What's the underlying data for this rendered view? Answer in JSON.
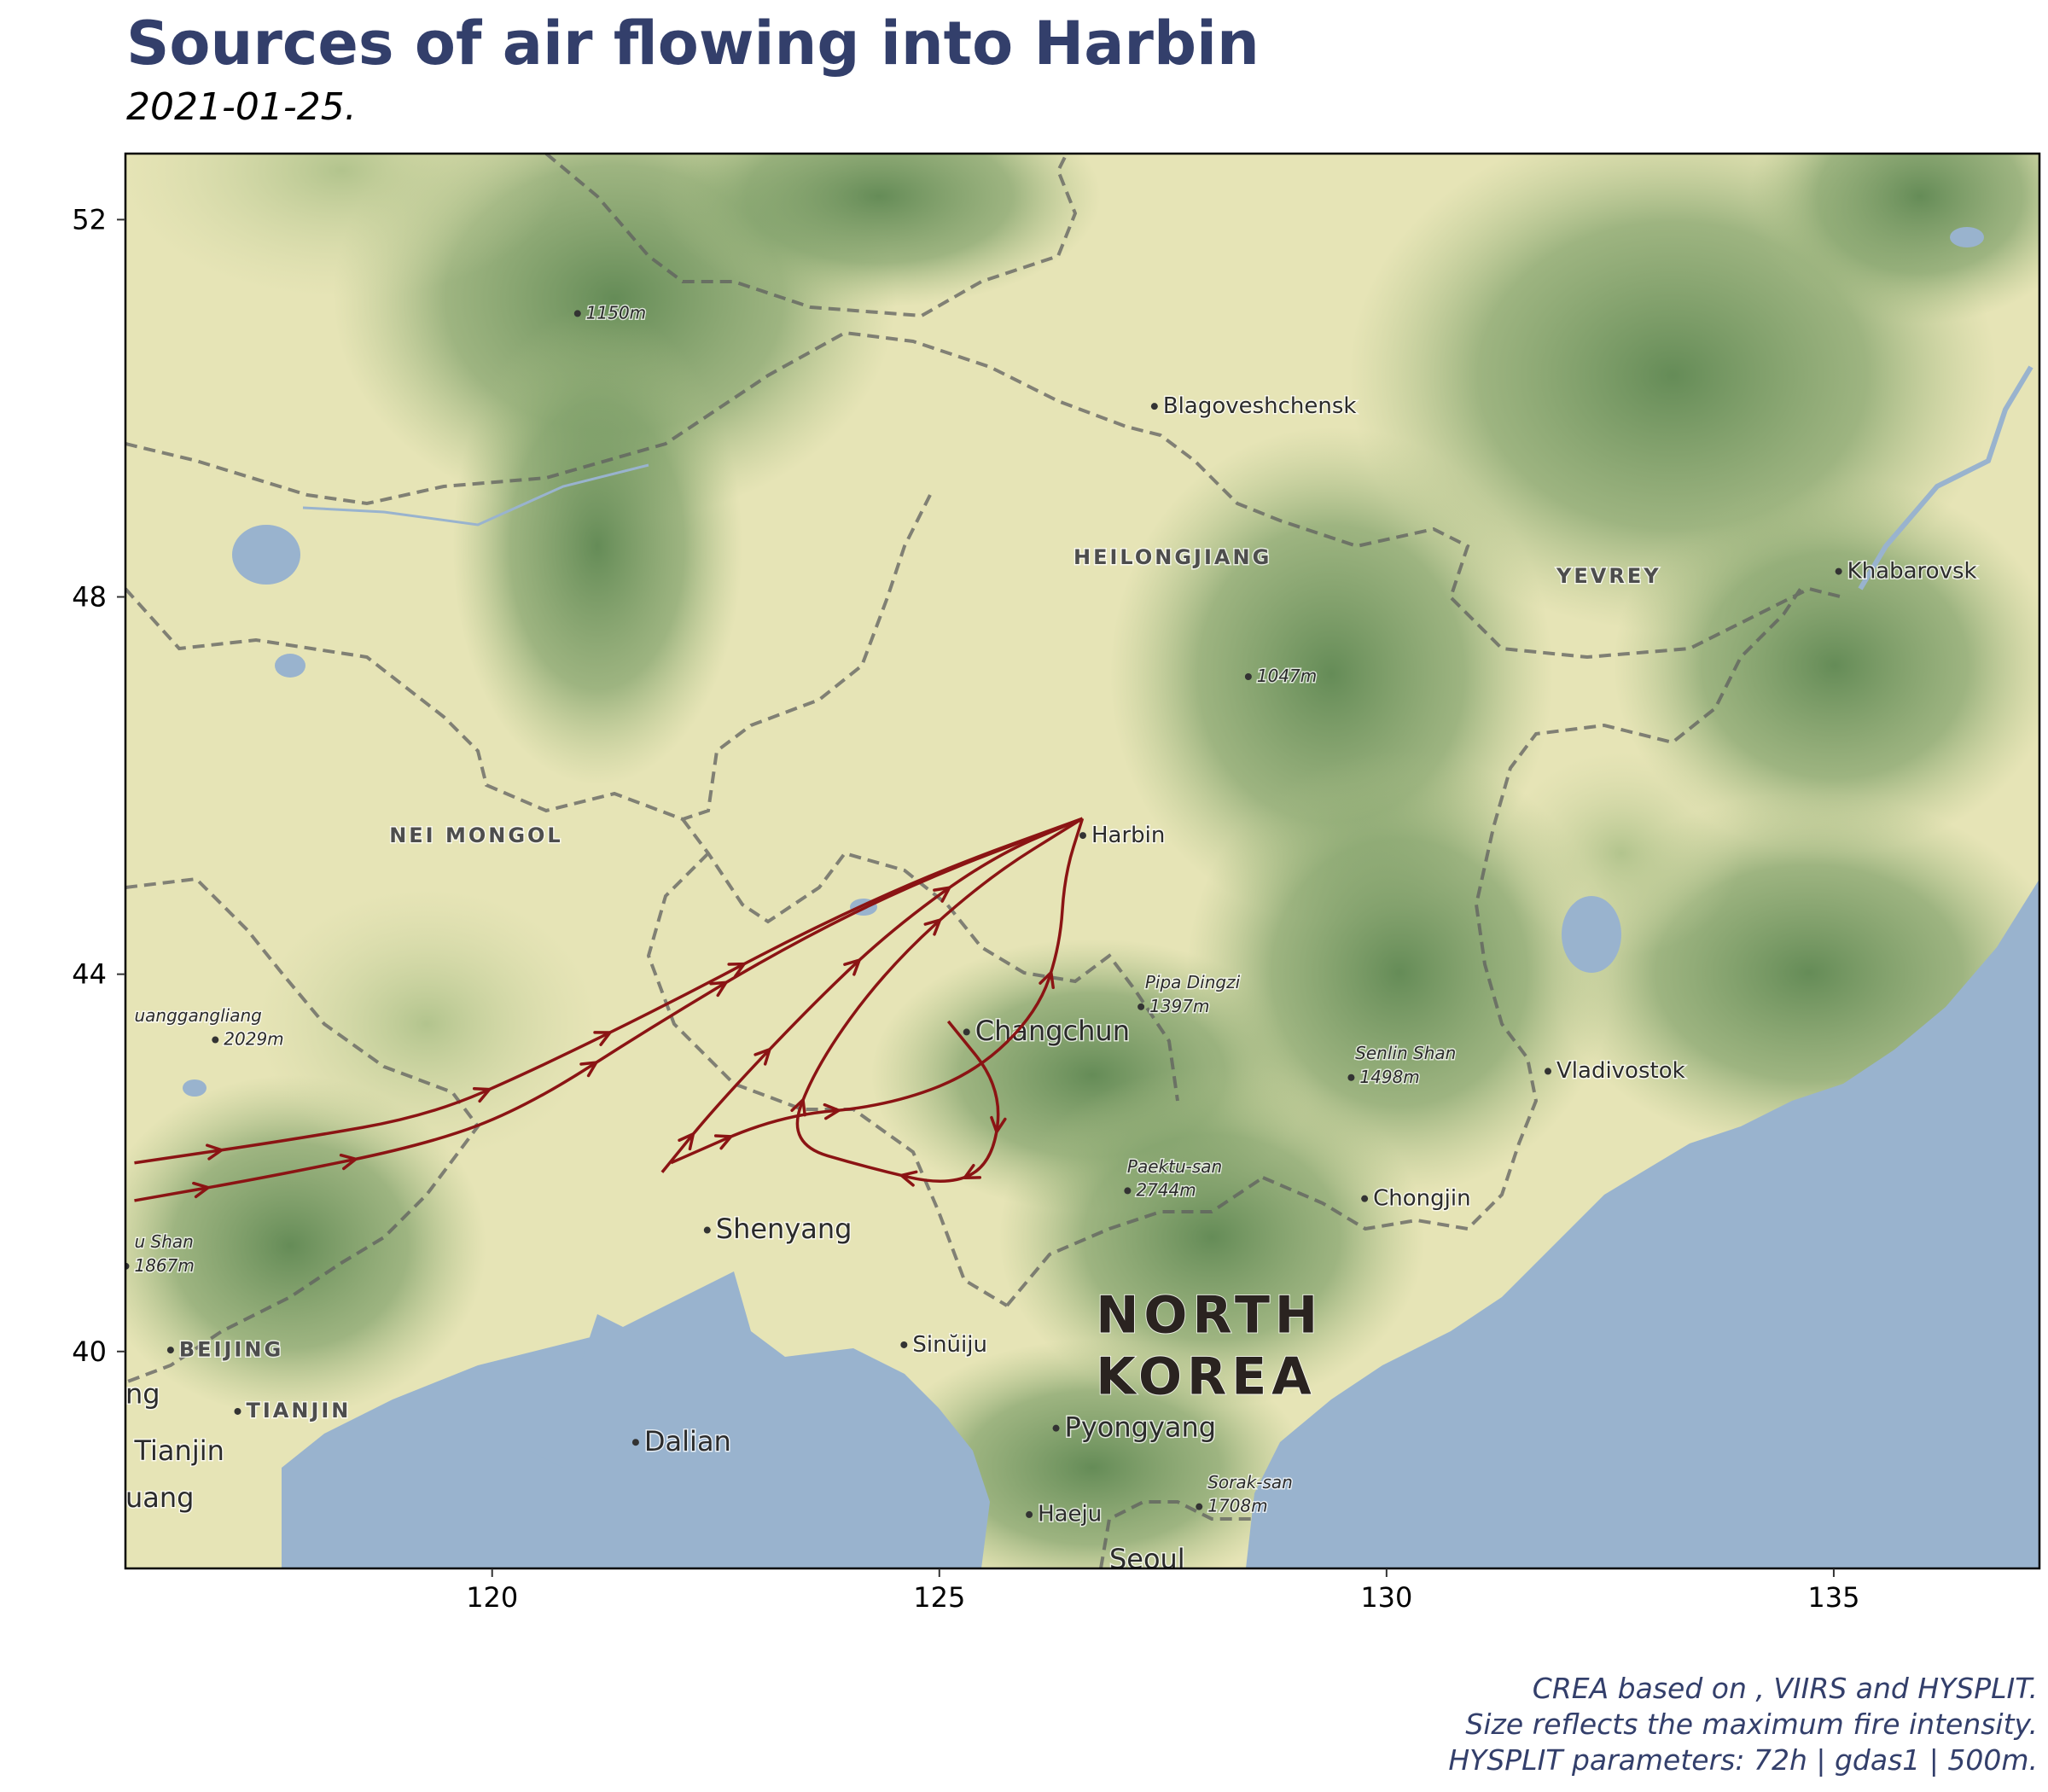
{
  "title": "Sources of air flowing into Harbin",
  "subtitle": "2021-01-25.",
  "caption": [
    "CREA based on , VIIRS and HYSPLIT.",
    "Size reflects the maximum fire intensity.",
    "HYSPLIT parameters: 72h | gdas1 | 500m."
  ],
  "colors": {
    "trajectory": "#8b1414",
    "title": "#333f6b",
    "water": "#99b3ce",
    "lowland": "#e6e4b6",
    "forest": "#6f9460"
  },
  "map_axes": {
    "x_ticks": [
      120,
      125,
      130,
      135
    ],
    "y_ticks": [
      40,
      44,
      48,
      52
    ],
    "xlim": [
      115.9,
      137.3
    ],
    "ylim": [
      37.7,
      52.7
    ]
  },
  "place_labels": [
    {
      "text": "Blagoveshchensk",
      "lon": 127.5,
      "lat": 49.95,
      "dot": true,
      "style": "city"
    },
    {
      "text": "HEILONGJIANG",
      "lon": 126.5,
      "lat": 48.35,
      "dot": false,
      "style": "region"
    },
    {
      "text": "YEVREY",
      "lon": 131.9,
      "lat": 48.15,
      "dot": false,
      "style": "region"
    },
    {
      "text": "Khabarovsk",
      "lon": 135.15,
      "lat": 48.2,
      "dot": true,
      "style": "city"
    },
    {
      "text": "1150m",
      "lon": 121.05,
      "lat": 50.95,
      "dot": true,
      "style": "peak"
    },
    {
      "text": "1047m",
      "lon": 128.55,
      "lat": 47.1,
      "dot": true,
      "style": "peak"
    },
    {
      "text": "NEI MONGOL",
      "lon": 118.85,
      "lat": 45.4,
      "dot": false,
      "style": "region"
    },
    {
      "text": "Harbin",
      "lon": 126.7,
      "lat": 45.4,
      "dot": true,
      "style": "city"
    },
    {
      "text": "Pipa Dingzi",
      "lon": 127.3,
      "lat": 43.85,
      "dot": false,
      "style": "peak"
    },
    {
      "text": "1397m",
      "lon": 127.35,
      "lat": 43.6,
      "dot": true,
      "style": "peak"
    },
    {
      "text": "Changchun",
      "lon": 125.4,
      "lat": 43.3,
      "dot": true,
      "style": "city-lg"
    },
    {
      "text": "uanggangliang",
      "lon": 116.0,
      "lat": 43.5,
      "dot": false,
      "style": "peak"
    },
    {
      "text": "2029m",
      "lon": 117.0,
      "lat": 43.25,
      "dot": true,
      "style": "peak"
    },
    {
      "text": "Senlin Shan",
      "lon": 129.65,
      "lat": 43.1,
      "dot": false,
      "style": "peak"
    },
    {
      "text": "1498m",
      "lon": 129.7,
      "lat": 42.85,
      "dot": true,
      "style": "peak"
    },
    {
      "text": "Vladivostok",
      "lon": 131.9,
      "lat": 42.9,
      "dot": true,
      "style": "city"
    },
    {
      "text": "Paektu-san",
      "lon": 127.1,
      "lat": 41.9,
      "dot": false,
      "style": "peak"
    },
    {
      "text": "2744m",
      "lon": 127.2,
      "lat": 41.65,
      "dot": true,
      "style": "peak"
    },
    {
      "text": "Chongjin",
      "lon": 129.85,
      "lat": 41.55,
      "dot": true,
      "style": "city"
    },
    {
      "text": "u Shan",
      "lon": 116.0,
      "lat": 41.1,
      "dot": false,
      "style": "peak"
    },
    {
      "text": "1867m",
      "lon": 116.0,
      "lat": 40.85,
      "dot": true,
      "style": "peak"
    },
    {
      "text": "Shenyang",
      "lon": 122.5,
      "lat": 41.2,
      "dot": true,
      "style": "city-lg"
    },
    {
      "text": "BEIJING",
      "lon": 116.5,
      "lat": 39.95,
      "dot": true,
      "style": "region"
    },
    {
      "text": "ng",
      "lon": 115.9,
      "lat": 39.45,
      "dot": false,
      "style": "city-lg"
    },
    {
      "text": "TIANJIN",
      "lon": 117.25,
      "lat": 39.3,
      "dot": true,
      "style": "region"
    },
    {
      "text": "Tianjin",
      "lon": 116.0,
      "lat": 38.85,
      "dot": false,
      "style": "city-lg"
    },
    {
      "text": "uang",
      "lon": 115.9,
      "lat": 38.35,
      "dot": false,
      "style": "city-lg"
    },
    {
      "text": "Dalian",
      "lon": 121.7,
      "lat": 38.95,
      "dot": true,
      "style": "city-lg"
    },
    {
      "text": "Sinŭiju",
      "lon": 124.7,
      "lat": 40.0,
      "dot": true,
      "style": "city"
    },
    {
      "text": "NORTH",
      "lon": 126.75,
      "lat": 40.2,
      "dot": false,
      "style": "country"
    },
    {
      "text": "KOREA",
      "lon": 126.75,
      "lat": 39.55,
      "dot": false,
      "style": "country"
    },
    {
      "text": "Pyongyang",
      "lon": 126.4,
      "lat": 39.1,
      "dot": true,
      "style": "city-lg"
    },
    {
      "text": "Sorak-san",
      "lon": 128.0,
      "lat": 38.55,
      "dot": false,
      "style": "peak"
    },
    {
      "text": "1708m",
      "lon": 128.0,
      "lat": 38.3,
      "dot": true,
      "style": "peak"
    },
    {
      "text": "Haeju",
      "lon": 126.1,
      "lat": 38.2,
      "dot": true,
      "style": "city"
    },
    {
      "text": "Seoul",
      "lon": 126.9,
      "lat": 37.7,
      "dot": false,
      "style": "city-lg"
    }
  ],
  "trajectories": [
    {
      "points": [
        [
          116.0,
          42.0
        ],
        [
          117.8,
          42.25
        ],
        [
          119.3,
          42.5
        ],
        [
          120.5,
          43.0
        ],
        [
          122.0,
          43.7
        ],
        [
          123.5,
          44.45
        ],
        [
          125.0,
          45.1
        ],
        [
          126.6,
          45.65
        ]
      ],
      "arrows": [
        1,
        3,
        4,
        5
      ]
    },
    {
      "points": [
        [
          116.0,
          41.6
        ],
        [
          117.5,
          41.85
        ],
        [
          119.3,
          42.2
        ],
        [
          120.4,
          42.6
        ],
        [
          121.8,
          43.45
        ],
        [
          123.3,
          44.3
        ],
        [
          124.8,
          45.0
        ],
        [
          126.6,
          45.65
        ]
      ],
      "arrows": [
        1,
        2,
        4,
        5
      ]
    },
    {
      "points": [
        [
          121.9,
          41.9
        ],
        [
          122.5,
          42.6
        ],
        [
          123.6,
          43.7
        ],
        [
          124.5,
          44.5
        ],
        [
          125.6,
          45.25
        ],
        [
          126.6,
          45.65
        ]
      ],
      "arrows": [
        1,
        2,
        3,
        4
      ]
    },
    {
      "points": [
        [
          122.0,
          42.0
        ],
        [
          123.2,
          42.5
        ],
        [
          124.4,
          42.6
        ],
        [
          125.4,
          42.95
        ],
        [
          126.1,
          43.6
        ],
        [
          126.35,
          44.3
        ],
        [
          126.4,
          45.05
        ],
        [
          126.6,
          45.65
        ]
      ],
      "arrows": [
        1,
        2,
        5
      ]
    },
    {
      "points": [
        [
          125.1,
          43.5
        ],
        [
          125.7,
          42.8
        ],
        [
          125.6,
          42.0
        ],
        [
          125.1,
          41.75
        ],
        [
          124.2,
          41.95
        ],
        [
          123.3,
          42.2
        ],
        [
          123.6,
          43.0
        ],
        [
          124.4,
          44.05
        ],
        [
          125.5,
          45.0
        ],
        [
          126.6,
          45.65
        ]
      ],
      "arrows": [
        2,
        3,
        4,
        6,
        8
      ]
    }
  ]
}
